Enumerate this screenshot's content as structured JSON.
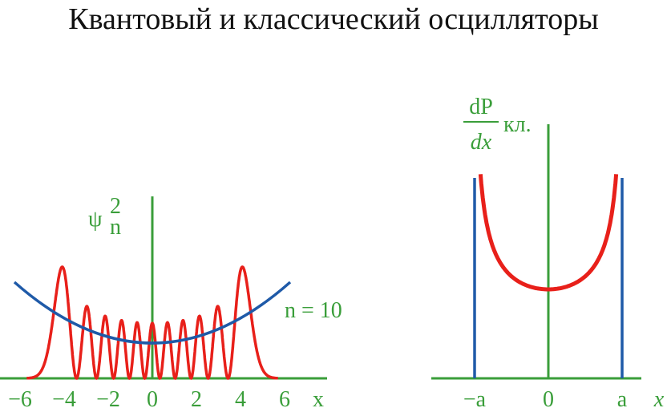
{
  "title": "Квантовый и классический осцилляторы",
  "left": {
    "y_label": "ψ",
    "y_label_sup": "2",
    "y_label_sub": "n",
    "curve_label": "n = 10",
    "ticks": [
      "−6",
      "−4",
      "−2",
      "0",
      "2",
      "4",
      "6"
    ],
    "x_label": "x"
  },
  "right": {
    "y_label_numerator": "dP",
    "y_label_denominator": "dx",
    "y_label_suffix": "кл.",
    "ticks": [
      "−a",
      "0",
      "a"
    ],
    "x_label": "x"
  }
}
